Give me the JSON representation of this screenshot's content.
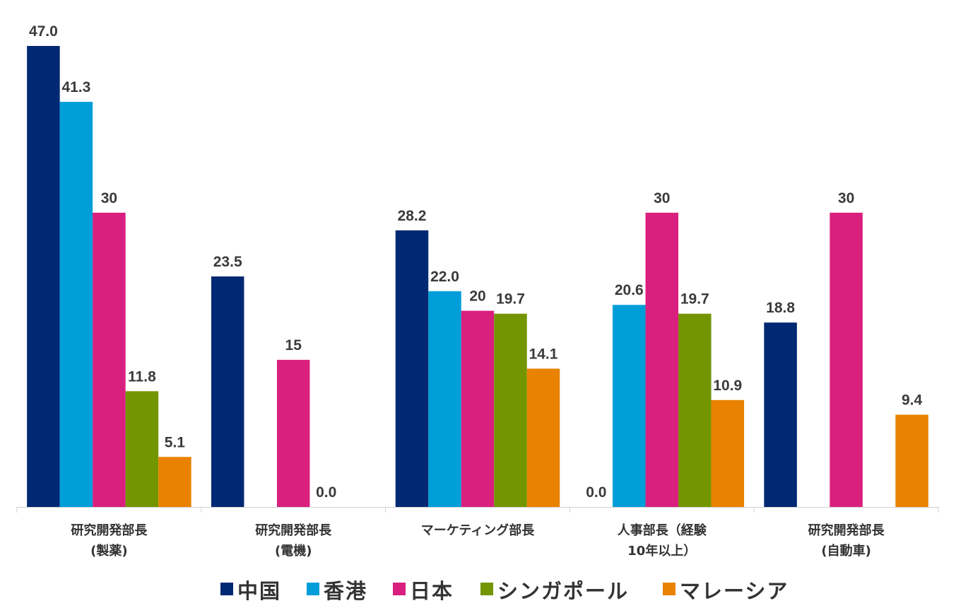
{
  "chart_data": {
    "type": "bar",
    "categories": [
      [
        "研究開発部長",
        "(製薬)"
      ],
      [
        "研究開発部長",
        "(電機)"
      ],
      [
        "マーケティング部長"
      ],
      [
        "人事部長（経験",
        "10年以上）"
      ],
      [
        "研究開発部長",
        "(自動車)"
      ]
    ],
    "series": [
      {
        "name": "中国",
        "color": "#002873",
        "values": [
          47.0,
          23.5,
          28.2,
          0.0,
          18.8
        ],
        "labels": [
          "47.0",
          "23.5",
          "28.2",
          "0.0",
          "18.8"
        ]
      },
      {
        "name": "香港",
        "color": "#009ed9",
        "values": [
          41.3,
          null,
          22.0,
          20.6,
          null
        ],
        "labels": [
          "41.3",
          null,
          "22.0",
          "20.6",
          null
        ]
      },
      {
        "name": "日本",
        "color": "#d9207f",
        "values": [
          30,
          15,
          20,
          30,
          30
        ],
        "labels": [
          "30",
          "15",
          "20",
          "30",
          "30"
        ]
      },
      {
        "name": "シンガポール",
        "color": "#739500",
        "values": [
          11.8,
          0.0,
          19.7,
          19.7,
          null
        ],
        "labels": [
          "11.8",
          "0.0",
          "19.7",
          "19.7",
          null
        ]
      },
      {
        "name": "マレーシア",
        "color": "#e88200",
        "values": [
          5.1,
          null,
          14.1,
          10.9,
          9.4
        ],
        "labels": [
          "5.1",
          null,
          "14.1",
          "10.9",
          "9.4"
        ]
      }
    ],
    "ylim": [
      0,
      47
    ],
    "grid": false,
    "legend": "bottom"
  }
}
